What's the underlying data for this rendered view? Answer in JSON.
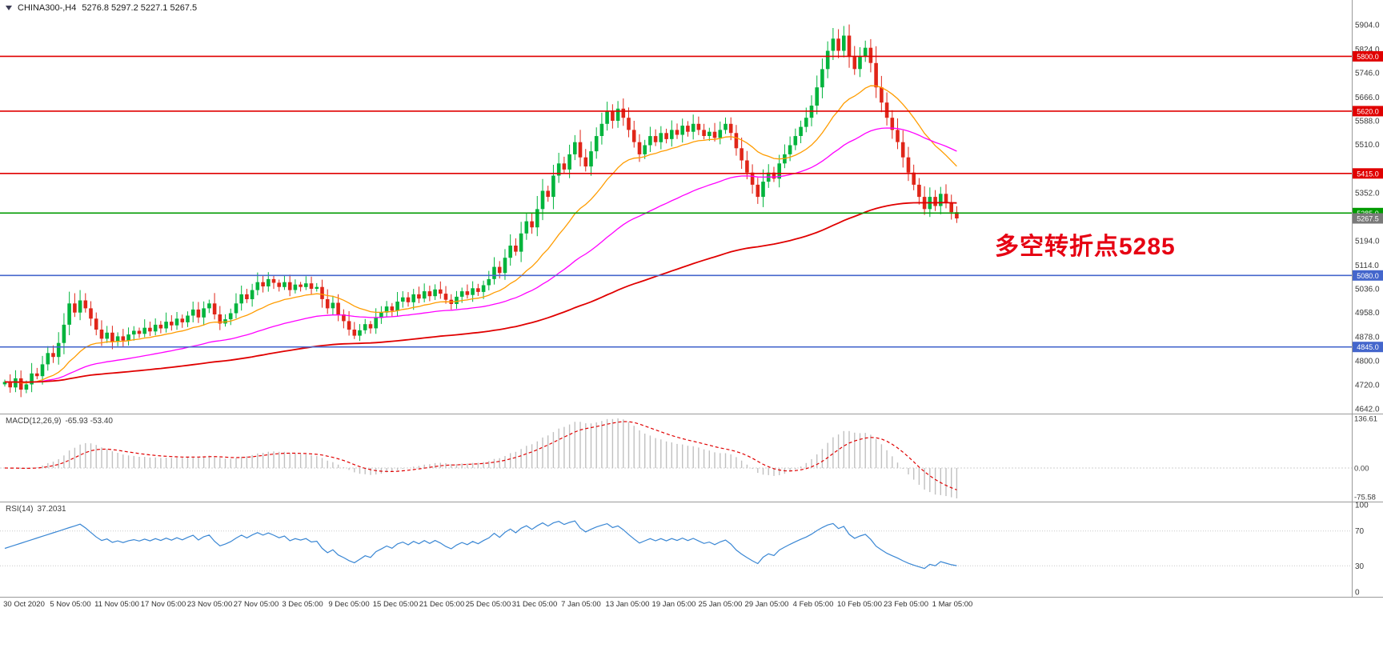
{
  "header": {
    "symbol": "CHINA300-,H4",
    "ohlc": "5276.8 5297.2 5227.1 5267.5"
  },
  "annotation": {
    "text": "多空转折点5285",
    "color": "#e60012"
  },
  "macd_panel": {
    "name": "MACD(12,26,9)",
    "values": "-65.93 -53.40"
  },
  "rsi_panel": {
    "name": "RSI(14)",
    "value": "37.2031"
  },
  "chart_data": {
    "type": "candlestick",
    "symbol": "CHINA300-",
    "timeframe": "H4",
    "last_ohlc": {
      "open": 5276.8,
      "high": 5297.2,
      "low": 5227.1,
      "close": 5267.5
    },
    "ylim": [
      4626,
      5964
    ],
    "price_ticks": [
      5904,
      5824,
      5746,
      5666,
      5588,
      5510,
      5352,
      5194,
      5114,
      5036,
      4958,
      4878,
      4800,
      4720,
      4642
    ],
    "closes": [
      4730,
      4712,
      4742,
      4705,
      4722,
      4758,
      4749,
      4788,
      4825,
      4812,
      4858,
      4918,
      4988,
      4958,
      4998,
      4972,
      4938,
      4902,
      4872,
      4892,
      4862,
      4880,
      4866,
      4886,
      4898,
      4888,
      4908,
      4896,
      4918,
      4906,
      4928,
      4916,
      4938,
      4926,
      4948,
      4968,
      4942,
      4972,
      4988,
      4952,
      4922,
      4936,
      4956,
      4988,
      5018,
      5002,
      5032,
      5058,
      5044,
      5068,
      5056,
      5042,
      5058,
      5032,
      5050,
      5042,
      5054,
      5036,
      5042,
      5002,
      4972,
      4990,
      4952,
      4930,
      4902,
      4882,
      4900,
      4920,
      4906,
      4940,
      4958,
      4978,
      4964,
      4994,
      5008,
      4992,
      5018,
      5004,
      5028,
      5012,
      5034,
      5020,
      5000,
      4986,
      5010,
      5028,
      5016,
      5038,
      5026,
      5048,
      5068,
      5108,
      5088,
      5138,
      5178,
      5158,
      5218,
      5258,
      5238,
      5298,
      5358,
      5338,
      5408,
      5448,
      5428,
      5478,
      5518,
      5468,
      5438,
      5488,
      5538,
      5578,
      5618,
      5588,
      5628,
      5598,
      5558,
      5518,
      5478,
      5508,
      5538,
      5518,
      5548,
      5528,
      5558,
      5542,
      5572,
      5552,
      5578,
      5558,
      5538,
      5552,
      5532,
      5558,
      5578,
      5548,
      5498,
      5458,
      5418,
      5378,
      5338,
      5388,
      5418,
      5398,
      5448,
      5478,
      5508,
      5538,
      5568,
      5598,
      5638,
      5698,
      5758,
      5818,
      5858,
      5818,
      5868,
      5798,
      5758,
      5798,
      5828,
      5778,
      5698,
      5648,
      5598,
      5558,
      5518,
      5468,
      5418,
      5378,
      5338,
      5298,
      5338,
      5308,
      5348,
      5318,
      5288,
      5267.5
    ],
    "hlines": [
      {
        "price": 5800,
        "label": "5800.0",
        "color": "#e00000"
      },
      {
        "price": 5620,
        "label": "5620.0",
        "color": "#e00000"
      },
      {
        "price": 5415,
        "label": "5415.0",
        "color": "#e00000"
      },
      {
        "price": 5285,
        "label": "5285.0",
        "color": "#009b00"
      },
      {
        "price": 5080,
        "label": "5080.0",
        "color": "#4466cc"
      },
      {
        "price": 4845,
        "label": "4845.0",
        "color": "#4466cc"
      }
    ],
    "current_price": {
      "price": 5267.5,
      "label": "5267.5",
      "color": "#7a7a7a"
    },
    "moving_averages": [
      {
        "name": "ma-fast",
        "period": 20,
        "color": "#ff9c00"
      },
      {
        "name": "ma-medium",
        "period": 55,
        "color": "#ff00ff"
      },
      {
        "name": "ma-slow",
        "period": 150,
        "color": "#e00000"
      }
    ],
    "colors": {
      "up": "#00b43c",
      "down": "#e02518"
    },
    "macd": {
      "fast": 12,
      "slow": 26,
      "signal": 9,
      "ticks": [
        136.61,
        0,
        -75.58
      ],
      "hist_color": "#c0c0c0",
      "signal_color": "#e00000"
    },
    "rsi": {
      "period": 14,
      "ticks": [
        100,
        70,
        30,
        0
      ],
      "levels": [
        70,
        30
      ],
      "color": "#3a87d4"
    },
    "time_labels": [
      "30 Oct 2020",
      "5 Nov 05:00",
      "11 Nov 05:00",
      "17 Nov 05:00",
      "23 Nov 05:00",
      "27 Nov 05:00",
      "3 Dec 05:00",
      "9 Dec 05:00",
      "15 Dec 05:00",
      "21 Dec 05:00",
      "25 Dec 05:00",
      "31 Dec 05:00",
      "7 Jan 05:00",
      "13 Jan 05:00",
      "19 Jan 05:00",
      "25 Jan 05:00",
      "29 Jan 05:00",
      "4 Feb 05:00",
      "10 Feb 05:00",
      "23 Feb 05:00",
      "1 Mar 05:00"
    ]
  }
}
